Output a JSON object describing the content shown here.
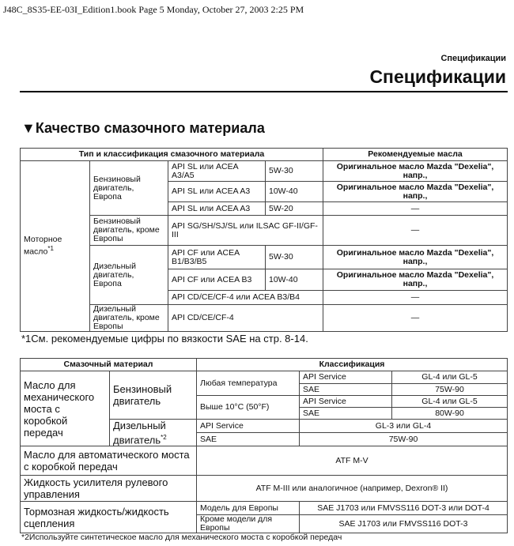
{
  "header_line": "J48C_8S35-EE-03I_Edition1.book  Page 5  Monday, October 27, 2003  2:25 PM",
  "section_small": "Спецификации",
  "section_title": "Спецификации",
  "heading": "▼Качество смазочного материала",
  "table1": {
    "headers": [
      "Тип и классификация смазочного материала",
      "Рекомендуемые масла"
    ],
    "motor_oil": "Моторное масло",
    "motor_oil_note": "*1",
    "petrol_eu": "Бензиновый двигатель, Европа",
    "petrol_non_eu": "Бензиновый двигатель, кроме Европы",
    "diesel_eu": "Дизельный двигатель, Европа",
    "diesel_non_eu": "Дизельный двигатель, кроме Европы",
    "rows": [
      {
        "spec": "API SL или ACEA A3/A5",
        "visc": "5W-30",
        "rec": "Оригинальное масло Mazda \"Dexelia\", напр.,"
      },
      {
        "spec": "API SL или ACEA A3",
        "visc": "10W-40",
        "rec": "Оригинальное масло Mazda \"Dexelia\", напр.,"
      },
      {
        "spec": "API SL или ACEA A3",
        "visc": "5W-20",
        "rec": "—"
      },
      {
        "spec": "API SG/SH/SJ/SL или ILSAC GF-II/GF-III",
        "rec": "—"
      },
      {
        "spec": "API CF или ACEA B1/B3/B5",
        "visc": "5W-30",
        "rec": "Оригинальное масло Mazda \"Dexelia\", напр.,"
      },
      {
        "spec": "API CF или ACEA B3",
        "visc": "10W-40",
        "rec": "Оригинальное масло Mazda \"Dexelia\", напр.,"
      },
      {
        "spec": "API CD/CE/CF-4 или ACEA B3/B4",
        "rec": "—"
      },
      {
        "spec": "API CD/CE/CF-4",
        "rec": "—"
      }
    ]
  },
  "footnote1": "*1См. рекомендуемые цифры по вязкости SAE на стр. 8-14.",
  "table2": {
    "headers": [
      "Смазочный материал",
      "Классификация"
    ],
    "manual": "Масло для механического моста с коробкой передач",
    "petrol": "Бензиновый двигатель",
    "diesel": "Дизельный двигатель",
    "diesel_note": "*2",
    "any_temp": "Любая температура",
    "above10": "Выше 10°C (50°F)",
    "api": "API Service",
    "sae": "SAE",
    "gl45": "GL-4 или GL-5",
    "v7590": "75W-90",
    "v8090": "80W-90",
    "gl34": "GL-3 или GL-4",
    "atf_label": "Масло для автоматического моста с коробкой передач",
    "atf_value": "ATF M-V",
    "ps_label": "Жидкость усилителя рулевого управления",
    "ps_value": "ATF M-III или аналогичное (например, Dexron® II)",
    "brake_label": "Тормозная жидкость/жидкость сцепления",
    "eu_model": "Модель для Европы",
    "eu_value": "SAE J1703 или FMVSS116 DOT-3 или DOT-4",
    "non_eu_model": "Кроме модели для Европы",
    "non_eu_value": "SAE J1703 или FMVSS116 DOT-3"
  },
  "footnote2": "*2Используйте синтетическое масло для механического моста с коробкой передач"
}
